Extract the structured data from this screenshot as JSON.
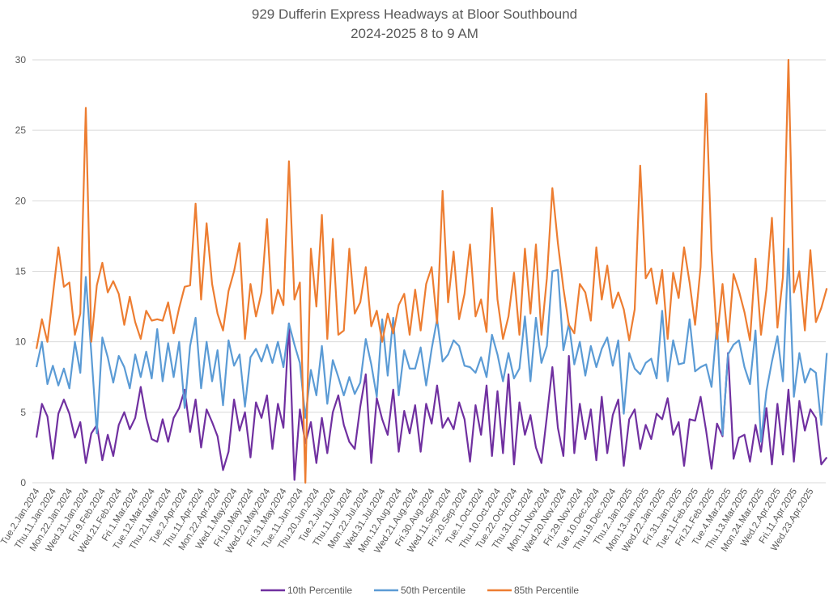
{
  "chart_data": {
    "type": "line",
    "title": "929 Dufferin Express Headways at Bloor Southbound",
    "subtitle": "2024-2025 8 to 9 AM",
    "xlabel": "",
    "ylabel": "",
    "ylim": [
      0,
      30
    ],
    "yticks": [
      0,
      5,
      10,
      15,
      20,
      25,
      30
    ],
    "grid": true,
    "legend_position": "bottom",
    "sample_step_note": "values sampled ~3 per tick interval",
    "tick_every": 3,
    "tick_labels": [
      "Tue.2.Jan.2024",
      "Thu.11.Jan.2024",
      "Mon.22.Jan.2024",
      "Wed.31.Jan.2024",
      "Fri.9.Feb.2024",
      "Wed.21.Feb.2024",
      "Fri.1.Mar.2024",
      "Tue.12.Mar.2024",
      "Thu.21.Mar.2024",
      "Tue.2.Apr.2024",
      "Thu.11.Apr.2024",
      "Mon.22.Apr.2024",
      "Wed.1.May.2024",
      "Fri.10.May.2024",
      "Wed.22.May.2024",
      "Fri.31.May.2024",
      "Tue.11.Jun.2024",
      "Thu.20.Jun.2024",
      "Tue.2.Jul.2024",
      "Thu.11.Jul.2024",
      "Mon.22.Jul.2024",
      "Wed.31.Jul.2024",
      "Mon.12.Aug.2024",
      "Wed.21.Aug.2024",
      "Fri.30.Aug.2024",
      "Wed.11.Sep.2024",
      "Fri.20.Sep.2024",
      "Tue.1.Oct.2024",
      "Thu.10.Oct.2024",
      "Tue.22.Oct.2024",
      "Thu.31.Oct.2024",
      "Mon.11.Nov.2024",
      "Wed.20.Nov.2024",
      "Fri.29.Nov.2024",
      "Tue.10.Dec.2024",
      "Thu.19.Dec.2024",
      "Thu.2.Jan.2025",
      "Mon.13.Jan.2025",
      "Wed.22.Jan.2025",
      "Fri.31.Jan.2025",
      "Tue.11.Feb.2025",
      "Fri.21.Feb.2025",
      "Tue.4.Mar.2025",
      "Thu.13.Mar.2025",
      "Mon.24.Mar.2025",
      "Wed.2.Apr.2025",
      "Fri.11.Apr.2025",
      "Wed.23.Apr.2025"
    ],
    "series": [
      {
        "name": "10th Percentile",
        "color": "#7030A0",
        "values": [
          3.2,
          5.6,
          4.7,
          1.7,
          4.9,
          5.9,
          4.9,
          3.2,
          4.3,
          1.4,
          3.5,
          4.1,
          1.6,
          3.4,
          1.9,
          4.1,
          5,
          3.8,
          4.6,
          6.8,
          4.6,
          3.1,
          2.9,
          4.5,
          2.9,
          4.6,
          5.3,
          6.6,
          3.6,
          5.9,
          2.5,
          5.2,
          4.3,
          3.3,
          0.9,
          2.2,
          5.9,
          3.7,
          5,
          1.8,
          5.7,
          4.6,
          6.2,
          2.4,
          5.6,
          3.9,
          11.3,
          0.2,
          5.2,
          2.8,
          4.3,
          1.4,
          4.6,
          2.1,
          5,
          6.2,
          4.1,
          2.9,
          2.4,
          5.4,
          7.7,
          1.4,
          6,
          4.5,
          3.4,
          6.6,
          2.2,
          5.1,
          3.5,
          5.5,
          2.2,
          5.6,
          4.2,
          6.9,
          3.9,
          4.6,
          3.8,
          5.7,
          4.5,
          1.5,
          5.5,
          3.4,
          6.9,
          1.9,
          6.5,
          2.1,
          7.7,
          1.3,
          5.7,
          3.4,
          4.8,
          2.5,
          1.4,
          4.7,
          8.2,
          3.9,
          1.9,
          9,
          2.1,
          5.6,
          3.1,
          5.2,
          1.6,
          6.1,
          2.1,
          4.8,
          5.9,
          1.2,
          4.5,
          5.2,
          2.4,
          4.1,
          3.1,
          4.9,
          4.5,
          6,
          3.4,
          4.3,
          1.2,
          4.5,
          4.4,
          6.1,
          3.7,
          1,
          4.2,
          3.3,
          9.2,
          1.7,
          3.2,
          3.4,
          1.5,
          4.1,
          2.2,
          5.3,
          1.3,
          5.6,
          2,
          6.6,
          1.5,
          5.8,
          3.7,
          5.2,
          4.6,
          1.3,
          1.8
        ]
      },
      {
        "name": "50th Percentile",
        "color": "#5B9BD5",
        "values": [
          8.2,
          10,
          7,
          8.3,
          6.9,
          8.1,
          6.7,
          10,
          7.8,
          14.6,
          9.2,
          3.5,
          10.3,
          8.9,
          7.1,
          9,
          8.2,
          6.7,
          9.1,
          7.5,
          9.3,
          7.4,
          10.9,
          7.2,
          9.9,
          7.5,
          10,
          5.3,
          9.7,
          11.7,
          6.7,
          10,
          7.2,
          9.4,
          5.5,
          10.1,
          8.3,
          9.1,
          5.4,
          8.9,
          9.5,
          8.6,
          9.8,
          8.5,
          10,
          8.2,
          11.3,
          9.8,
          8.5,
          4.6,
          8,
          6.2,
          9.7,
          5.6,
          8.7,
          7.5,
          6.2,
          7.5,
          6.3,
          7.1,
          10.2,
          8.4,
          6.1,
          11.6,
          7.6,
          11.7,
          6.2,
          9.4,
          8.1,
          8.1,
          9.6,
          6.9,
          9.5,
          11.6,
          8.6,
          9.1,
          10.1,
          9.7,
          8.3,
          8.2,
          7.8,
          8.9,
          7.5,
          10.5,
          9.1,
          7.2,
          9.2,
          7.4,
          8.1,
          11.8,
          7.2,
          11.7,
          8.5,
          9.7,
          15,
          15.1,
          9.4,
          11.3,
          8.4,
          10,
          7.6,
          9.7,
          8.2,
          9.5,
          10.3,
          8.3,
          10.1,
          4.9,
          9.2,
          8.1,
          7.7,
          8.5,
          8.8,
          7.4,
          12.2,
          7.2,
          10.1,
          8.4,
          8.5,
          11.6,
          7.9,
          8.2,
          8.4,
          6.8,
          11.3,
          3.4,
          9.1,
          9.8,
          10.1,
          8.2,
          7,
          10.8,
          2.9,
          6.5,
          8.6,
          10.4,
          7.2,
          16.6,
          6.1,
          9.2,
          7.1,
          8.1,
          7.8,
          4.1,
          9.2
        ]
      },
      {
        "name": "85th Percentile",
        "color": "#ED7D31",
        "values": [
          9.5,
          11.6,
          10,
          13.3,
          16.7,
          13.9,
          14.2,
          10.5,
          12,
          26.6,
          10,
          14,
          15.6,
          13.5,
          14.3,
          13.4,
          11.2,
          13.2,
          11.4,
          10.2,
          12.2,
          11.5,
          11.6,
          11.5,
          12.8,
          10.6,
          12.4,
          13.9,
          14,
          19.8,
          13,
          18.4,
          14.1,
          12,
          10.8,
          13.6,
          15,
          17,
          10.2,
          14.1,
          11.8,
          13.5,
          18.7,
          12,
          13.7,
          12.6,
          22.8,
          13,
          14.2,
          0,
          16.6,
          12.5,
          19,
          10.2,
          17.3,
          10.5,
          10.8,
          16.6,
          12,
          12.8,
          15.3,
          11.1,
          12.2,
          10,
          12,
          10.6,
          12.6,
          13.4,
          10.5,
          13.7,
          10.8,
          14.1,
          15.3,
          11.3,
          20.7,
          12.8,
          16.4,
          11.6,
          13.4,
          16.9,
          11.8,
          13,
          10.7,
          19.5,
          13,
          10.2,
          11.8,
          14.9,
          10.5,
          16.6,
          12,
          16.9,
          10.5,
          14.5,
          20.9,
          17,
          13.8,
          11.2,
          10.6,
          14.1,
          13.5,
          11.5,
          16.7,
          13,
          15.4,
          12.4,
          13.5,
          12.3,
          10.1,
          12.3,
          22.5,
          14.5,
          15.2,
          12.7,
          15.1,
          10.2,
          14.9,
          13.1,
          16.7,
          14.2,
          11.2,
          15.3,
          27.6,
          16.5,
          10.2,
          14.1,
          10,
          14.8,
          13.6,
          12.1,
          10.1,
          15.9,
          10.5,
          13.7,
          18.8,
          11,
          14.6,
          30,
          13.5,
          15,
          10.8,
          16.5,
          11.4,
          12.4,
          13.8
        ]
      }
    ]
  }
}
